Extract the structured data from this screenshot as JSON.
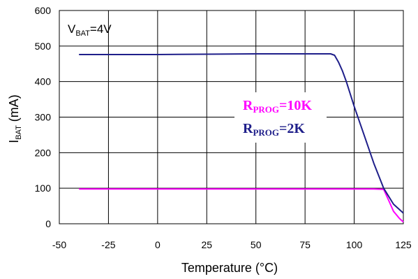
{
  "chart_data": {
    "type": "line",
    "ylabel": {
      "main": "I",
      "sub": "BAT",
      "rest": " (mA)"
    },
    "xlabel": "Temperature (°C)",
    "xlim": [
      -50,
      125
    ],
    "ylim": [
      0,
      600
    ],
    "x_ticks": [
      -50,
      -25,
      0,
      25,
      50,
      75,
      100,
      125
    ],
    "y_ticks": [
      0,
      100,
      200,
      300,
      400,
      500,
      600
    ],
    "grid": true,
    "annotation": {
      "main": "V",
      "sub": "BAT",
      "rest": "=4V"
    },
    "series": [
      {
        "name": {
          "main": "R",
          "sub": "PROG",
          "rest": "=10K"
        },
        "color": "#ff00ff",
        "points": [
          [
            -40,
            98
          ],
          [
            0,
            98
          ],
          [
            25,
            98
          ],
          [
            50,
            98
          ],
          [
            75,
            98
          ],
          [
            100,
            98
          ],
          [
            110,
            98
          ],
          [
            115,
            97
          ],
          [
            118,
            60
          ],
          [
            120,
            35
          ],
          [
            123,
            15
          ],
          [
            125,
            5
          ]
        ]
      },
      {
        "name": {
          "main": "R",
          "sub": "PROG",
          "rest": "=2K"
        },
        "color": "#1f1f8a",
        "points": [
          [
            -40,
            476
          ],
          [
            0,
            476
          ],
          [
            25,
            477
          ],
          [
            50,
            478
          ],
          [
            75,
            478
          ],
          [
            88,
            478
          ],
          [
            90,
            474
          ],
          [
            92,
            455
          ],
          [
            94,
            430
          ],
          [
            96,
            400
          ],
          [
            100,
            330
          ],
          [
            105,
            250
          ],
          [
            110,
            170
          ],
          [
            115,
            100
          ],
          [
            120,
            55
          ],
          [
            125,
            30
          ]
        ]
      }
    ]
  }
}
